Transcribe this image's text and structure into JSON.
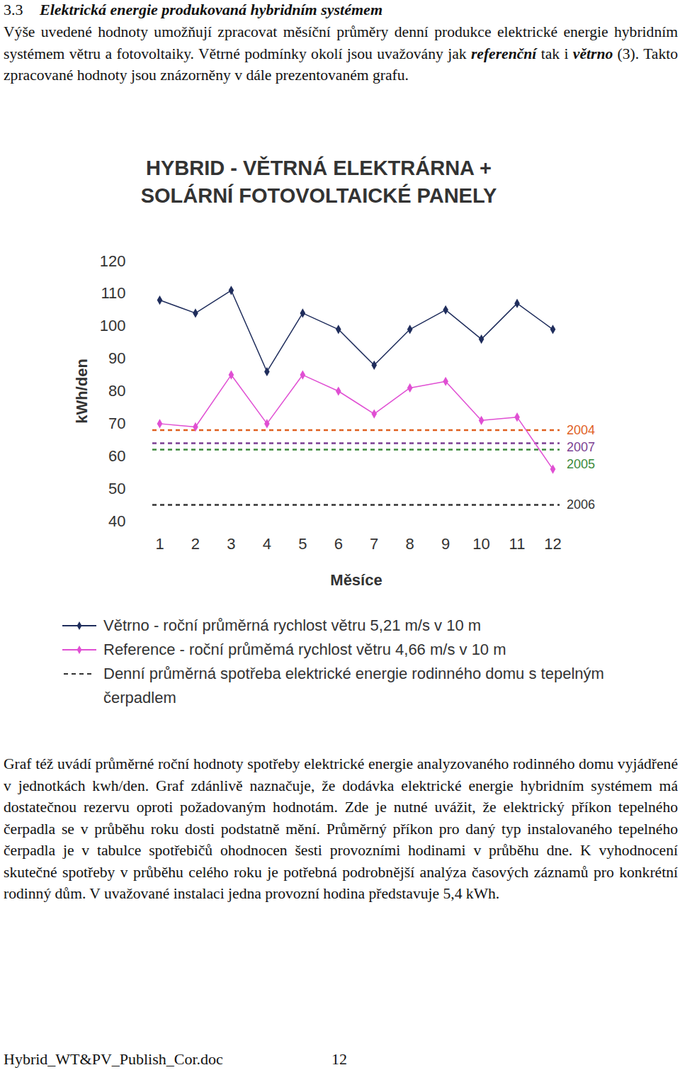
{
  "heading": {
    "number": "3.3",
    "title": "Elektrická energie produkovaná hybridním systémem"
  },
  "paragraphs_before": [
    [
      {
        "text": "Výše uvedené hodnoty umožňují zpracovat měsíční průměry denní produkce elektrické energie hybridním systémem větru a fotovoltaiky. Větrné podmínky okolí jsou uvažovány jak ",
        "style": "normal"
      },
      {
        "text": "referenční",
        "style": "bold-italic"
      },
      {
        "text": " tak i ",
        "style": "normal"
      },
      {
        "text": "větrno",
        "style": "bold-italic"
      },
      {
        "text": " (3). Takto zpracované hodnoty jsou znázorněny v dále prezentovaném grafu.",
        "style": "normal"
      }
    ]
  ],
  "chart_data": {
    "type": "line",
    "title": [
      "HYBRID - VĚTRNÁ ELEKTRÁRNA +",
      "SOLÁRNÍ FOTOVOLTAICKÉ PANELY"
    ],
    "x_label": "Měsíce",
    "y_label": "kWh/den",
    "x": [
      1,
      2,
      3,
      4,
      5,
      6,
      7,
      8,
      9,
      10,
      11,
      12
    ],
    "xlim": [
      1,
      12
    ],
    "xticks": [
      1,
      2,
      3,
      4,
      5,
      6,
      7,
      8,
      9,
      10,
      11,
      12
    ],
    "ylim": [
      40,
      120
    ],
    "yticks": [
      40,
      50,
      60,
      70,
      80,
      90,
      100,
      110,
      120
    ],
    "grid": false,
    "series": [
      {
        "name": "Větrno - roční průměrná rychlost větru 5,21 m/s v 10 m",
        "color": "#1f2d5c",
        "marker": "diamond",
        "line_style": "solid",
        "values": [
          108,
          104,
          111,
          86,
          104,
          99,
          88,
          99,
          105,
          96,
          107,
          99
        ]
      },
      {
        "name": "Reference - roční průměmá rychlost větru 4,66 m/s v 10 m",
        "color": "#e04fd3",
        "marker": "diamond",
        "line_style": "solid",
        "values": [
          70,
          69,
          85,
          70,
          85,
          80,
          73,
          81,
          83,
          71,
          72,
          56
        ]
      }
    ],
    "reference_lines": [
      {
        "name": "2004",
        "color": "#e0601f",
        "value": 68,
        "line_style": "dashed"
      },
      {
        "name": "2007",
        "color": "#7b3f93",
        "value": 64,
        "line_style": "dashed"
      },
      {
        "name": "2005",
        "color": "#3c8a3c",
        "value": 62,
        "line_style": "dashed"
      },
      {
        "name": "2006",
        "color": "#333333",
        "value": 45,
        "line_style": "dashed"
      }
    ],
    "reference_legend": "Denní průměrná spotřeba elektrické energie rodinného domu s tepelným čerpadlem"
  },
  "paragraphs_after": [
    [
      {
        "text": "Graf též uvádí průměrné roční hodnoty spotřeby elektrické energie analyzovaného rodinného domu vyjádřené v jednotkách kwh/den. Graf zdánlivě naznačuje, že dodávka elektrické energie hybridním systémem má dostatečnou rezervu oproti požadovaným hodnotám. Zde je nutné uvážit, že elektrický příkon tepelného čerpadla se v průběhu roku dosti podstatně mění. Průměrný příkon pro daný typ instalovaného tepelného čerpadla je v tabulce spotřebičů ohodnocen šesti provozními hodinami v průběhu dne. K vyhodnocení skutečné spotřeby v průběhu celého roku je potřebná podrobnější analýza časových záznamů pro konkrétní rodinný dům. V uvažované instalaci jedna provozní hodina představuje 5,4 kWh.",
        "style": "normal"
      }
    ]
  ],
  "footer": {
    "file": "Hybrid_WT&PV_Publish_Cor.doc",
    "page": "12"
  }
}
